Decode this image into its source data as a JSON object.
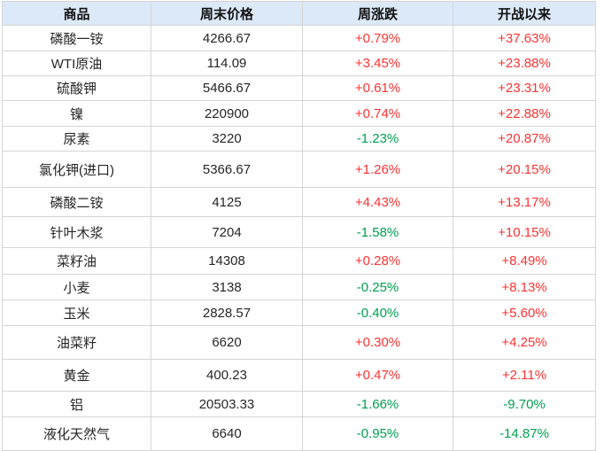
{
  "colors": {
    "up": "#fb3333",
    "down": "#00a050",
    "header_bg": "#dce9f8",
    "border": "#d5d5d5"
  },
  "chart_data": {
    "type": "table",
    "columns": [
      "商品",
      "周末价格",
      "周涨跌",
      "开战以来"
    ],
    "rows": [
      [
        "磷酸一铵",
        "4266.67",
        "+0.79%",
        "+37.63%"
      ],
      [
        "WTI原油",
        "114.09",
        "+3.45%",
        "+23.88%"
      ],
      [
        "硫酸钾",
        "5466.67",
        "+0.61%",
        "+23.31%"
      ],
      [
        "镍",
        "220900",
        "+0.74%",
        "+22.88%"
      ],
      [
        "尿素",
        "3220",
        "-1.23%",
        "+20.87%"
      ],
      [
        "氯化钾(进口)",
        "5366.67",
        "+1.26%",
        "+20.15%"
      ],
      [
        "磷酸二铵",
        "4125",
        "+4.43%",
        "+13.17%"
      ],
      [
        "针叶木浆",
        "7204",
        "-1.58%",
        "+10.15%"
      ],
      [
        "菜籽油",
        "14308",
        "+0.28%",
        "+8.49%"
      ],
      [
        "小麦",
        "3138",
        "-0.25%",
        "+8.13%"
      ],
      [
        "玉米",
        "2828.57",
        "-0.40%",
        "+5.60%"
      ],
      [
        "油菜籽",
        "6620",
        "+0.30%",
        "+4.25%"
      ],
      [
        "黄金",
        "400.23",
        "+0.47%",
        "+2.11%"
      ],
      [
        "铝",
        "20503.33",
        "-1.66%",
        "-9.70%"
      ],
      [
        "液化天然气",
        "6640",
        "-0.95%",
        "-14.87%"
      ]
    ]
  }
}
